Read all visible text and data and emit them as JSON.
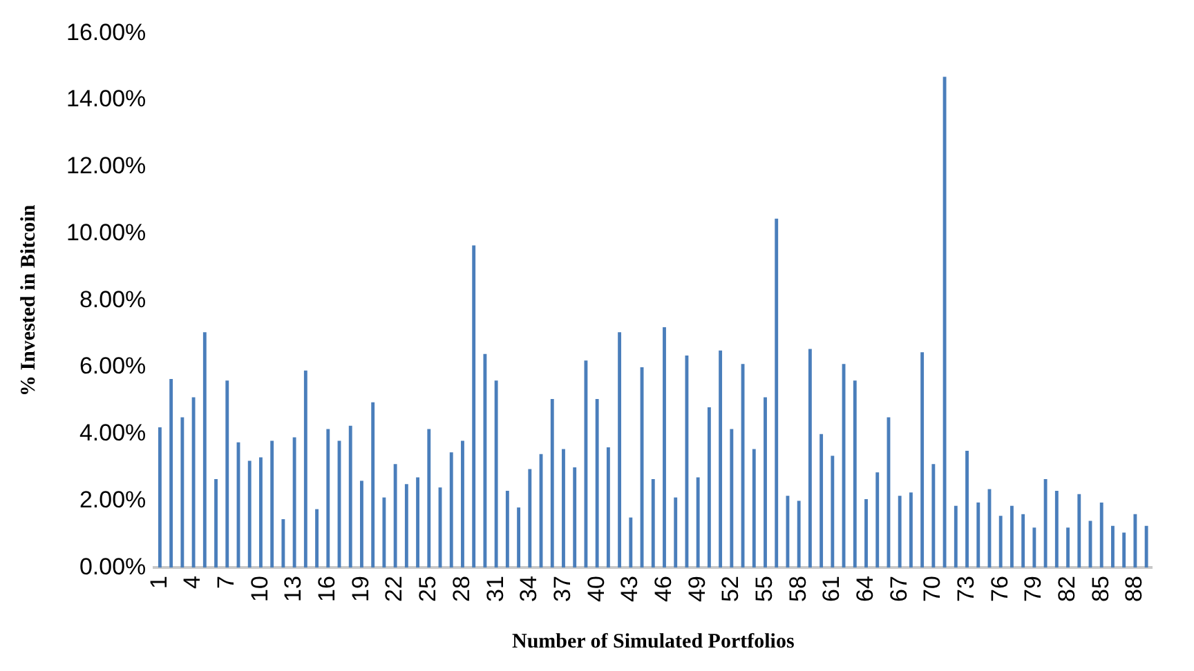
{
  "chart_data": {
    "type": "bar",
    "xlabel": "Number of Simulated Portfolios",
    "ylabel": "% Invested in Bitcoin",
    "categories": [
      "1",
      null,
      null,
      "4",
      null,
      null,
      "7",
      null,
      null,
      "10",
      null,
      null,
      "13",
      null,
      null,
      "16",
      null,
      null,
      "19",
      null,
      null,
      "22",
      null,
      null,
      "25",
      null,
      null,
      "28",
      null,
      null,
      "31",
      null,
      null,
      "34",
      null,
      null,
      "37",
      null,
      null,
      "40",
      null,
      null,
      "43",
      null,
      null,
      "46",
      null,
      null,
      "49",
      null,
      null,
      "52",
      null,
      null,
      "55",
      null,
      null,
      "58",
      null,
      null,
      "61",
      null,
      null,
      "64",
      null,
      null,
      "67",
      null,
      null,
      "70",
      null,
      null,
      "73",
      null,
      null,
      "76",
      null,
      null,
      "79",
      null,
      null,
      "82",
      null,
      null,
      "85",
      null,
      null,
      "88",
      null
    ],
    "values": [
      4.2,
      5.65,
      4.5,
      5.1,
      7.05,
      2.65,
      5.6,
      3.75,
      3.2,
      3.3,
      3.8,
      1.45,
      3.9,
      5.9,
      1.75,
      4.15,
      3.8,
      4.25,
      2.6,
      4.95,
      2.1,
      3.1,
      2.5,
      2.7,
      4.15,
      2.4,
      3.45,
      3.8,
      9.65,
      6.4,
      5.6,
      2.3,
      1.8,
      2.95,
      3.4,
      5.05,
      3.55,
      3.0,
      6.2,
      5.05,
      3.6,
      7.05,
      1.5,
      6.0,
      2.65,
      7.2,
      2.1,
      6.35,
      2.7,
      4.8,
      6.5,
      4.15,
      6.1,
      3.55,
      5.1,
      10.45,
      2.15,
      2.0,
      6.55,
      4.0,
      3.35,
      6.1,
      5.6,
      2.05,
      2.85,
      4.5,
      2.15,
      2.25,
      6.45,
      3.1,
      14.7,
      1.85,
      3.5,
      1.95,
      2.35,
      1.55,
      1.85,
      1.6,
      1.2,
      2.65,
      2.3,
      1.2,
      2.2,
      1.4,
      1.95,
      1.25,
      1.05,
      1.6,
      1.25
    ],
    "color": "#4a7ebb",
    "ylim": [
      0,
      16
    ],
    "yticks": [
      {
        "value": 0,
        "label": "0.00%"
      },
      {
        "value": 2,
        "label": "2.00%"
      },
      {
        "value": 4,
        "label": "4.00%"
      },
      {
        "value": 6,
        "label": "6.00%"
      },
      {
        "value": 8,
        "label": "8.00%"
      },
      {
        "value": 10,
        "label": "10.00%"
      },
      {
        "value": 12,
        "label": "12.00%"
      },
      {
        "value": 14,
        "label": "14.00%"
      },
      {
        "value": 16,
        "label": "16.00%"
      }
    ],
    "grid": false,
    "legend": false
  }
}
